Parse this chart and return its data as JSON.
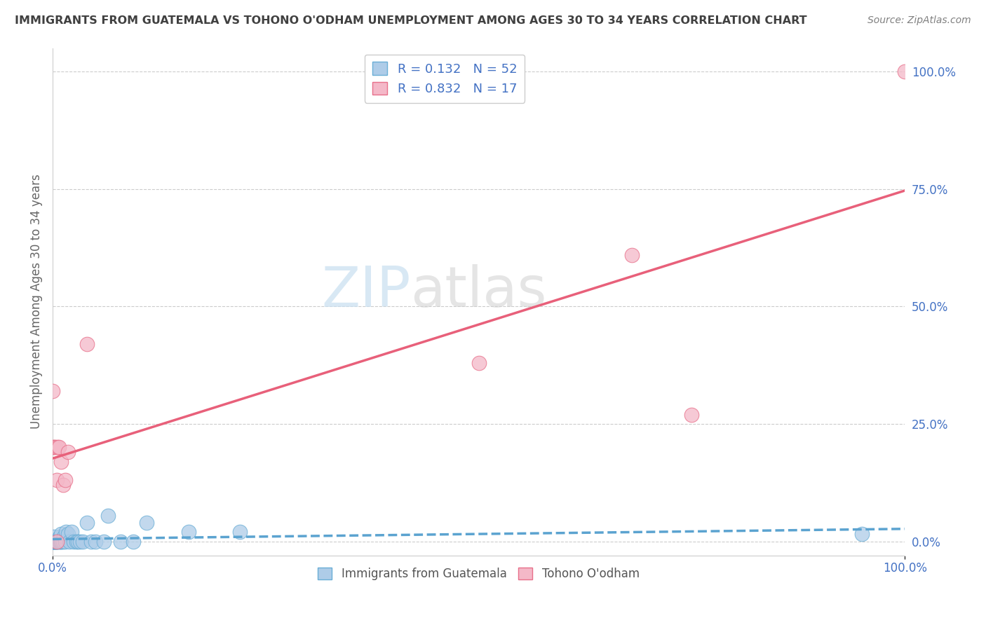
{
  "title": "IMMIGRANTS FROM GUATEMALA VS TOHONO O'ODHAM UNEMPLOYMENT AMONG AGES 30 TO 34 YEARS CORRELATION CHART",
  "source": "Source: ZipAtlas.com",
  "ylabel": "Unemployment Among Ages 30 to 34 years",
  "r_blue": "0.132",
  "n_blue": "52",
  "r_pink": "0.832",
  "n_pink": "17",
  "color_blue": "#aecce8",
  "color_pink": "#f4b8c8",
  "edge_blue": "#6aaed6",
  "edge_pink": "#e8708a",
  "trendline_blue_color": "#5ba3d0",
  "trendline_pink_color": "#e8607a",
  "watermark_zip": "ZIP",
  "watermark_atlas": "atlas",
  "background_color": "#ffffff",
  "grid_color": "#cccccc",
  "xmin": 0.0,
  "xmax": 1.0,
  "ymin": -0.03,
  "ymax": 1.05,
  "ytick_right_vals": [
    0.0,
    0.25,
    0.5,
    0.75,
    1.0
  ],
  "ytick_right_labels": [
    "0.0%",
    "25.0%",
    "50.0%",
    "75.0%",
    "100.0%"
  ],
  "blue_x": [
    0.0,
    0.0,
    0.0,
    0.0,
    0.0,
    0.001,
    0.001,
    0.001,
    0.001,
    0.001,
    0.002,
    0.002,
    0.002,
    0.002,
    0.003,
    0.003,
    0.003,
    0.004,
    0.004,
    0.005,
    0.005,
    0.006,
    0.007,
    0.008,
    0.008,
    0.009,
    0.01,
    0.01,
    0.011,
    0.012,
    0.013,
    0.015,
    0.016,
    0.018,
    0.02,
    0.022,
    0.025,
    0.028,
    0.03,
    0.032,
    0.035,
    0.04,
    0.045,
    0.05,
    0.06,
    0.065,
    0.08,
    0.095,
    0.11,
    0.16,
    0.22,
    0.95
  ],
  "blue_y": [
    0.0,
    0.0,
    0.0,
    0.0,
    0.0,
    0.0,
    0.0,
    0.0,
    0.0,
    0.0,
    0.0,
    0.0,
    0.0,
    0.01,
    0.0,
    0.0,
    0.0,
    0.0,
    0.0,
    0.0,
    0.0,
    0.0,
    0.0,
    0.0,
    0.01,
    0.0,
    0.0,
    0.015,
    0.0,
    0.0,
    0.01,
    0.0,
    0.02,
    0.015,
    0.0,
    0.02,
    0.0,
    0.0,
    0.0,
    0.0,
    0.0,
    0.04,
    0.0,
    0.0,
    0.0,
    0.055,
    0.0,
    0.0,
    0.04,
    0.02,
    0.02,
    0.015
  ],
  "pink_x": [
    0.0,
    0.001,
    0.002,
    0.003,
    0.005,
    0.005,
    0.006,
    0.007,
    0.01,
    0.012,
    0.015,
    0.018,
    0.04,
    0.5,
    0.68,
    0.75,
    1.0
  ],
  "pink_y": [
    0.32,
    0.2,
    0.2,
    0.2,
    0.0,
    0.13,
    0.2,
    0.2,
    0.17,
    0.12,
    0.13,
    0.19,
    0.42,
    0.38,
    0.61,
    0.27,
    1.0
  ],
  "legend_blue_text_color": "#4472c4",
  "legend_pink_text_color": "#e87090",
  "axis_text_color": "#4472c4",
  "title_color": "#404040",
  "source_color": "#808080"
}
